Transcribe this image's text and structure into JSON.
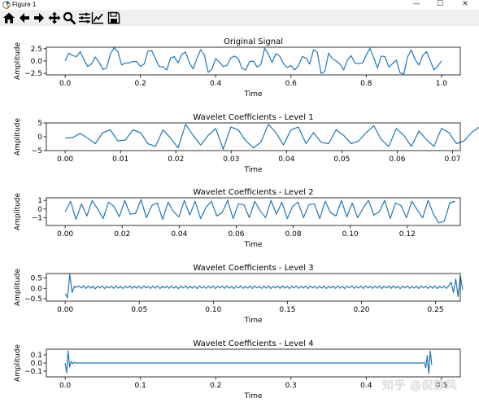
{
  "window": {
    "title": "Figure 1",
    "minimize_glyph": "—",
    "maximize_glyph": "☐",
    "close_glyph": "✕"
  },
  "toolbar": {
    "buttons": [
      {
        "name": "home-icon",
        "label": "Home"
      },
      {
        "name": "back-icon",
        "label": "Back"
      },
      {
        "name": "forward-icon",
        "label": "Forward"
      },
      {
        "name": "pan-icon",
        "label": "Pan"
      },
      {
        "name": "zoom-icon",
        "label": "Zoom"
      },
      {
        "name": "subplots-icon",
        "label": "Configure subplots"
      },
      {
        "name": "edit-axes-icon",
        "label": "Edit axis"
      },
      {
        "name": "save-icon",
        "label": "Save"
      }
    ]
  },
  "colors": {
    "line": "#1f77b4",
    "axes": "#000000",
    "background": "#ffffff"
  },
  "watermark": "知乎 @倪静风",
  "chart_data": [
    {
      "type": "line",
      "title": "Original Signal",
      "xlabel": "Time",
      "ylabel": "Amplitude",
      "xlim": [
        -0.05,
        1.05
      ],
      "ylim": [
        -2.8,
        2.8
      ],
      "xticks": [
        0.0,
        0.2,
        0.4,
        0.6,
        0.8,
        1.0
      ],
      "xtick_labels": [
        "0.0",
        "0.2",
        "0.4",
        "0.6",
        "0.8",
        "1.0"
      ],
      "yticks": [
        2.5,
        0.0,
        -2.5
      ],
      "ytick_labels": [
        "2.5",
        "0.0",
        "−2.5"
      ],
      "x_start": 0.0,
      "x_step": 0.01,
      "values": [
        0.0,
        1.6,
        1.1,
        0.9,
        1.9,
        0.3,
        -1.1,
        -0.6,
        0.8,
        -0.2,
        -1.7,
        -1.4,
        1.4,
        2.7,
        1.9,
        -0.8,
        -0.4,
        -0.4,
        -0.1,
        -0.1,
        -1.1,
        -0.6,
        2.0,
        2.1,
        0.5,
        -1.1,
        -1.2,
        -1.8,
        0.6,
        0.9,
        -0.4,
        1.4,
        1.8,
        -0.3,
        -1.6,
        0.5,
        2.3,
        1.2,
        -2.3,
        -1.6,
        0.5,
        -0.2,
        -1.1,
        -0.9,
        0.6,
        1.0,
        0.5,
        -1.5,
        -1.8,
        -0.1,
        0.0,
        -1.2,
        -0.7,
        2.6,
        1.4,
        -0.3,
        1.5,
        1.0,
        -0.5,
        -1.3,
        -0.9,
        -1.8,
        -0.9,
        0.9,
        0.6,
        -0.6,
        2.3,
        1.8,
        -2.5,
        -2.1,
        1.6,
        0.5,
        0.0,
        -0.6,
        -1.8,
        0.2,
        1.1,
        -0.4,
        -0.5,
        -0.4,
        1.2,
        2.6,
        0.7,
        -1.4,
        1.0,
        0.9,
        -1.2,
        -0.5,
        0.2,
        -2.4,
        -2.6,
        0.9,
        2.2,
        0.3,
        -0.8,
        1.1,
        1.9,
        0.1,
        -1.8,
        -1.0,
        0.0
      ]
    },
    {
      "type": "line",
      "title": "Wavelet Coefficients - Level 1",
      "xlabel": "Time",
      "ylabel": "Amplitude",
      "xlim": [
        -0.0034,
        0.0714
      ],
      "ylim": [
        -5,
        5
      ],
      "xticks": [
        0.0,
        0.01,
        0.02,
        0.03,
        0.04,
        0.05,
        0.06,
        0.07
      ],
      "xtick_labels": [
        "0.00",
        "0.01",
        "0.02",
        "0.03",
        "0.04",
        "0.05",
        "0.06",
        "0.07"
      ],
      "yticks": [
        5,
        0,
        -5
      ],
      "ytick_labels": [
        "5",
        "0",
        "−5"
      ],
      "x_start": 0.0,
      "x_step": 0.00136,
      "values": [
        -0.5,
        -0.3,
        1.2,
        -0.5,
        -2.5,
        1.5,
        2.5,
        -1.5,
        -1.2,
        2.5,
        1.5,
        -2.5,
        -3.5,
        2.5,
        -0.5,
        -4.0,
        4.5,
        0.5,
        -3.0,
        0.5,
        3.0,
        -4.5,
        3.5,
        2.5,
        -1.5,
        -4.0,
        -2.0,
        4.5,
        1.5,
        -3.0,
        2.5,
        3.5,
        -2.5,
        1.5,
        -2.0,
        -2.5,
        2.5,
        0.5,
        -2.5,
        -1.5,
        1.5,
        4.0,
        -1.0,
        -3.5,
        3.0,
        0.5,
        -3.5,
        2.0,
        -1.0,
        -3.5,
        3.0,
        1.5,
        -2.5,
        -1.5,
        1.5,
        3.5,
        -3.0,
        -1.5,
        1.5,
        -2.5,
        -2.0,
        4.0,
        -0.5,
        -4.0,
        3.5,
        1.5,
        -1.5,
        -2.0,
        -1.5,
        1.5,
        3.0,
        -1.0,
        -2.5,
        0.0,
        0.0,
        -3.0,
        3.5,
        2.0,
        -1.5,
        -3.0,
        2.0,
        -0.5,
        0.3,
        1.2,
        1.8
      ]
    },
    {
      "type": "line",
      "title": "Wavelet Coefficients - Level 2",
      "xlabel": "Time",
      "ylabel": "Amplitude",
      "xlim": [
        -0.0066,
        0.1386
      ],
      "ylim": [
        -1.9,
        1.3
      ],
      "xticks": [
        0.0,
        0.02,
        0.04,
        0.06,
        0.08,
        0.1,
        0.12
      ],
      "xtick_labels": [
        "0.00",
        "0.02",
        "0.04",
        "0.06",
        "0.08",
        "0.10",
        "0.12"
      ],
      "yticks": [
        1,
        0,
        -1
      ],
      "ytick_labels": [
        "1",
        "0",
        "−1"
      ],
      "x_start": 0.0,
      "x_step": 0.0019,
      "values": [
        -0.3,
        0.9,
        -1.2,
        0.6,
        -0.8,
        1.0,
        0.0,
        -1.1,
        0.8,
        0.3,
        -0.9,
        1.0,
        -0.6,
        -0.5,
        1.1,
        -1.0,
        0.4,
        0.7,
        -1.2,
        0.8,
        -0.3,
        -0.9,
        1.0,
        -0.7,
        0.9,
        -1.1,
        0.2,
        0.9,
        -0.8,
        -0.4,
        1.0,
        -1.1,
        0.6,
        0.5,
        -1.0,
        0.9,
        -0.2,
        -1.0,
        1.0,
        -0.6,
        0.8,
        -1.1,
        0.3,
        0.8,
        -1.0,
        0.5,
        0.6,
        -1.1,
        0.9,
        -0.4,
        -0.8,
        1.0,
        -0.9,
        0.7,
        -1.0,
        0.1,
        1.0,
        -0.7,
        -0.3,
        1.0,
        -1.1,
        0.7,
        0.4,
        -1.0,
        0.9,
        -0.1,
        -1.0,
        1.0,
        -0.6,
        -1.6,
        -1.4,
        0.7,
        0.9
      ]
    },
    {
      "type": "line",
      "title": "Wavelet Coefficients - Level 3",
      "xlabel": "Time",
      "ylabel": "Amplitude",
      "xlim": [
        -0.0127,
        0.2667
      ],
      "ylim": [
        -0.62,
        0.72
      ],
      "xticks": [
        0.0,
        0.05,
        0.1,
        0.15,
        0.2,
        0.25
      ],
      "xtick_labels": [
        "0.00",
        "0.05",
        "0.10",
        "0.15",
        "0.20",
        "0.25"
      ],
      "yticks": [
        0.5,
        0.0,
        -0.5
      ],
      "ytick_labels": [
        "0.5",
        "0.0",
        "−0.5"
      ],
      "x_start": 0.0,
      "x_step": 0.00156,
      "values": [
        -0.25,
        -0.45,
        0.68,
        -0.2,
        0.1,
        0.05,
        0.12,
        0.02,
        0.13,
        -0.01,
        0.12,
        0.01,
        0.1,
        -0.02,
        0.1,
        0.02,
        0.12,
        -0.01,
        0.1,
        0.02,
        0.11,
        0.0,
        0.12,
        0.01,
        0.1,
        -0.01,
        0.11,
        0.02,
        0.12,
        0.0,
        0.1,
        0.01,
        0.11,
        -0.01,
        0.12,
        0.02,
        0.1,
        0.0,
        0.11,
        0.01,
        0.12,
        -0.01,
        0.1,
        0.02,
        0.11,
        0.0,
        0.12,
        0.01,
        0.1,
        -0.01,
        0.11,
        0.02,
        0.12,
        0.0,
        0.1,
        0.01,
        0.11,
        -0.01,
        0.12,
        0.02,
        0.1,
        0.0,
        0.11,
        0.01,
        0.12,
        -0.01,
        0.1,
        0.02,
        0.11,
        0.0,
        0.12,
        0.01,
        0.1,
        -0.01,
        0.11,
        0.02,
        0.12,
        0.0,
        0.1,
        0.01,
        0.11,
        -0.01,
        0.12,
        0.02,
        0.1,
        0.0,
        0.11,
        0.01,
        0.12,
        -0.01,
        0.1,
        0.02,
        0.11,
        0.0,
        0.12,
        0.01,
        0.1,
        -0.01,
        0.11,
        0.02,
        0.12,
        0.0,
        0.1,
        0.01,
        0.11,
        -0.01,
        0.12,
        0.02,
        0.1,
        0.0,
        0.11,
        0.01,
        0.12,
        -0.01,
        0.1,
        0.02,
        0.11,
        0.0,
        0.12,
        0.01,
        0.1,
        -0.01,
        0.11,
        0.02,
        0.12,
        0.0,
        0.1,
        0.01,
        0.11,
        -0.01,
        0.12,
        0.02,
        0.1,
        0.0,
        0.11,
        0.01,
        0.12,
        -0.01,
        0.1,
        0.02,
        0.11,
        0.0,
        0.12,
        0.01,
        0.1,
        -0.01,
        0.11,
        0.02,
        0.12,
        0.0,
        0.1,
        0.01,
        0.11,
        -0.01,
        0.12,
        0.02,
        0.1,
        0.0,
        0.11,
        0.01,
        0.12,
        -0.01,
        0.1,
        0.02,
        0.11,
        0.0,
        0.12,
        0.3,
        -0.2,
        0.45,
        -0.4,
        0.6,
        -0.05
      ]
    },
    {
      "type": "line",
      "title": "Wavelet Coefficients - Level 4",
      "xlabel": "Time",
      "ylabel": "Amplitude",
      "xlim": [
        -0.025,
        0.525
      ],
      "ylim": [
        -0.17,
        0.17
      ],
      "xticks": [
        0.0,
        0.1,
        0.2,
        0.3,
        0.4,
        0.5
      ],
      "xtick_labels": [
        "0.0",
        "0.1",
        "0.2",
        "0.3",
        "0.4",
        "0.5"
      ],
      "yticks": [
        0.1,
        0.0,
        -0.1
      ],
      "ytick_labels": [
        "0.1",
        "0.0",
        "−0.1"
      ],
      "x_start": 0.0,
      "x_step": 0.00198,
      "values": [
        0.0,
        -0.12,
        0.15,
        -0.05,
        0.02,
        -0.01,
        0.01,
        0.0,
        0.0,
        0.0,
        0.0,
        0.0,
        0.0,
        0.0,
        0.0,
        0.0,
        0.0,
        0.0,
        0.0,
        0.0,
        0.0,
        0.0,
        0.0,
        0.0,
        0.0,
        0.0,
        0.0,
        0.0,
        0.0,
        0.0,
        0.0,
        0.0,
        0.0,
        0.0,
        0.0,
        0.0,
        0.0,
        0.0,
        0.0,
        0.0,
        0.0,
        0.0,
        0.0,
        0.0,
        0.0,
        0.0,
        0.0,
        0.0,
        0.0,
        0.0,
        0.0,
        0.0,
        0.0,
        0.0,
        0.0,
        0.0,
        0.0,
        0.0,
        0.0,
        0.0,
        0.0,
        0.0,
        0.0,
        0.0,
        0.0,
        0.0,
        0.0,
        0.0,
        0.0,
        0.0,
        0.0,
        0.0,
        0.0,
        0.0,
        0.0,
        0.0,
        0.0,
        0.0,
        0.0,
        0.0,
        0.0,
        0.0,
        0.0,
        0.0,
        0.0,
        0.0,
        0.0,
        0.0,
        0.0,
        0.0,
        0.0,
        0.0,
        0.0,
        0.0,
        0.0,
        0.0,
        0.0,
        0.0,
        0.0,
        0.0,
        0.0,
        0.0,
        0.0,
        0.0,
        0.0,
        0.0,
        0.0,
        0.0,
        0.0,
        0.0,
        0.0,
        0.0,
        0.0,
        0.0,
        0.0,
        0.0,
        0.0,
        0.0,
        0.0,
        0.0,
        0.0,
        0.0,
        0.0,
        0.0,
        0.0,
        0.0,
        0.0,
        0.0,
        0.0,
        0.0,
        0.0,
        0.0,
        0.0,
        0.0,
        0.0,
        0.0,
        0.0,
        0.0,
        0.0,
        0.0,
        0.0,
        0.0,
        0.0,
        0.0,
        0.0,
        0.0,
        0.0,
        0.0,
        0.0,
        0.0,
        0.0,
        0.0,
        0.0,
        0.0,
        0.0,
        0.0,
        0.0,
        0.0,
        0.0,
        0.0,
        0.0,
        0.0,
        0.0,
        0.0,
        0.0,
        0.0,
        0.0,
        0.0,
        0.0,
        0.0,
        0.0,
        0.0,
        0.0,
        0.0,
        0.0,
        0.0,
        0.0,
        0.0,
        0.0,
        0.0,
        0.0,
        0.0,
        0.0,
        0.0,
        0.0,
        0.0,
        0.0,
        0.0,
        0.0,
        0.0,
        0.0,
        0.0,
        0.0,
        0.0,
        0.0,
        0.0,
        0.0,
        0.0,
        0.0,
        0.0,
        0.0,
        0.0,
        0.0,
        0.0,
        0.0,
        0.0,
        0.0,
        0.0,
        0.0,
        0.0,
        0.0,
        0.0,
        0.0,
        0.0,
        0.0,
        0.0,
        0.0,
        0.0,
        0.0,
        0.0,
        0.0,
        0.0,
        0.0,
        0.0,
        0.0,
        0.0,
        0.0,
        0.0,
        0.0,
        0.0,
        0.0,
        0.0,
        0.0,
        0.0,
        0.0,
        0.0,
        0.0,
        0.0,
        0.0,
        0.0,
        0.0,
        0.01,
        -0.06,
        0.09,
        -0.13,
        0.15,
        -0.02
      ]
    }
  ]
}
